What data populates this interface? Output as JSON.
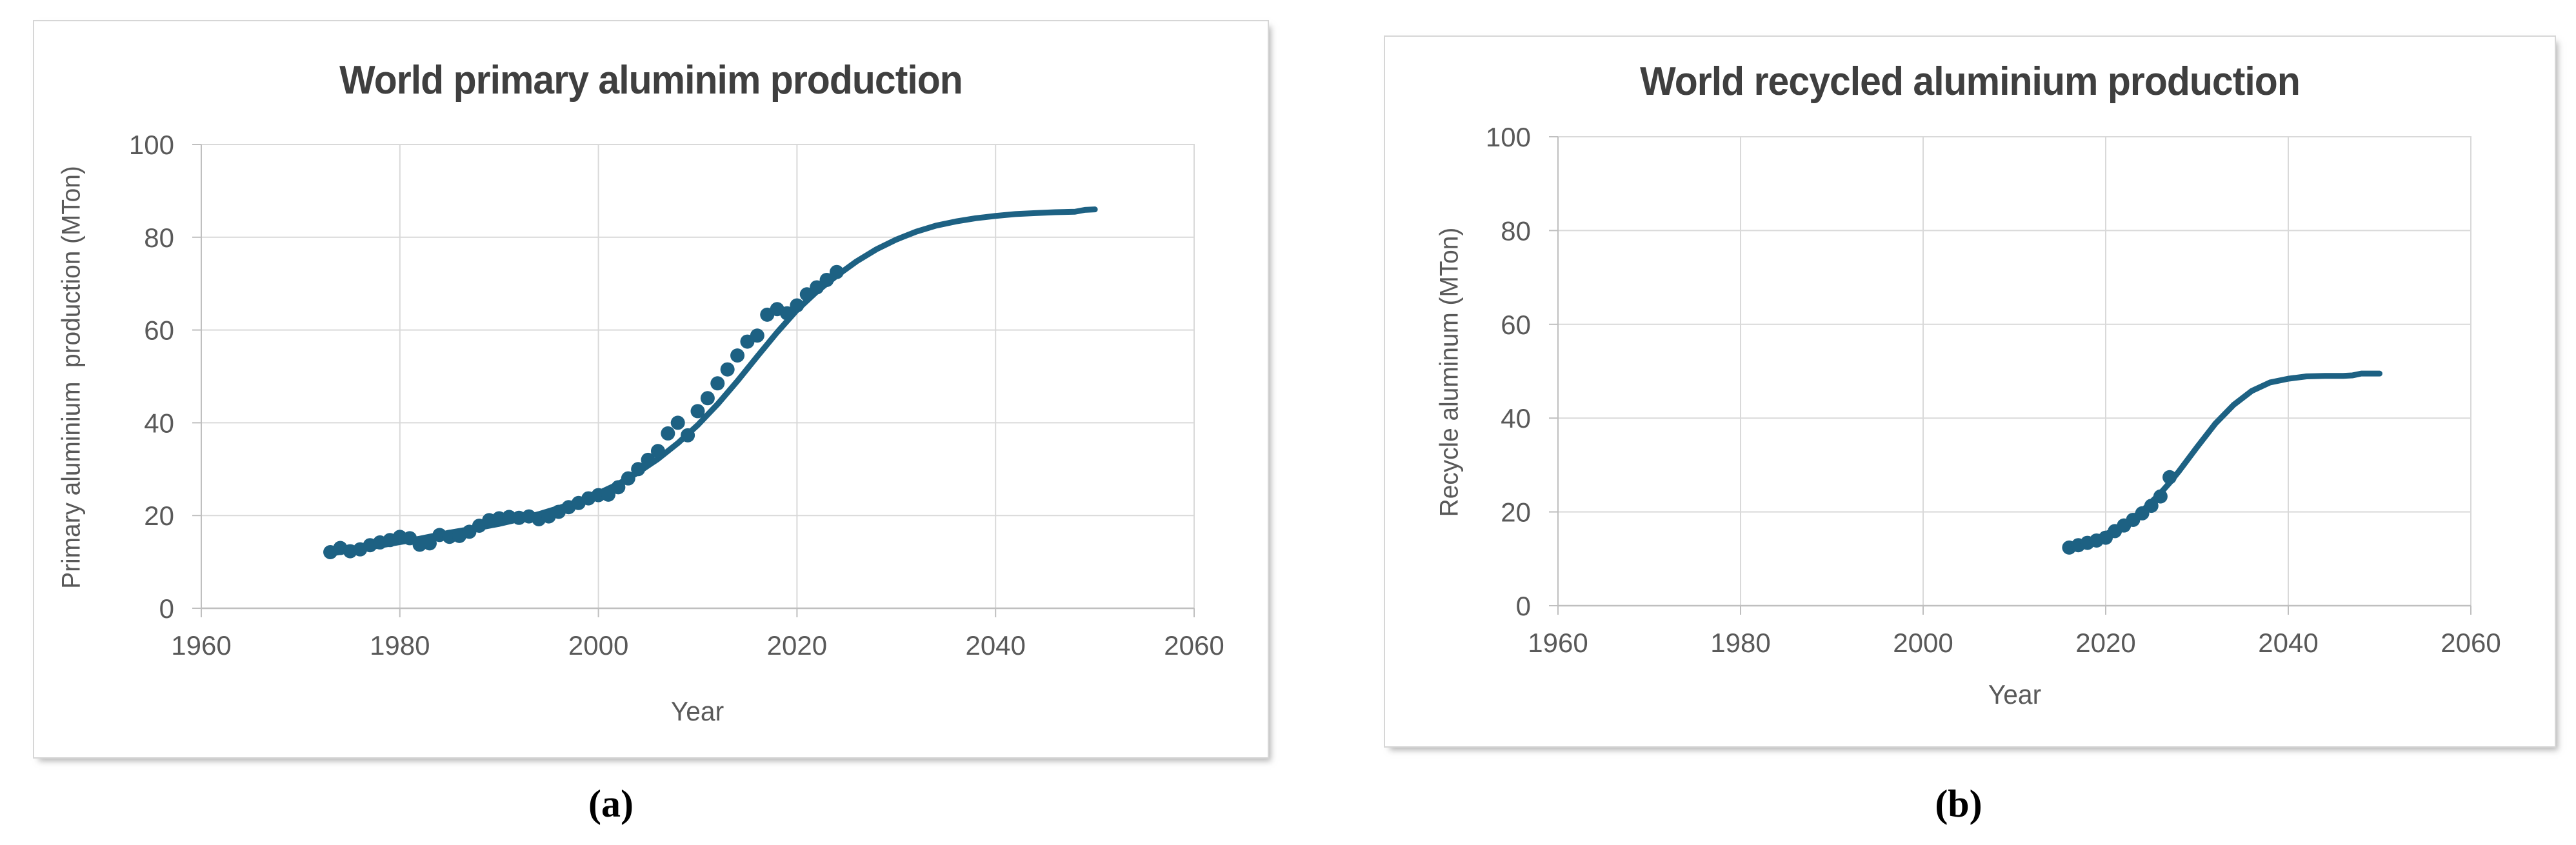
{
  "figure": {
    "captions": [
      "(a)",
      "(b)"
    ]
  },
  "colors": {
    "series": "#1D6183",
    "gridline": "#D9D9D9",
    "axis_line": "#BFBFBF",
    "tick_text": "#595959",
    "title_text": "#3F3F3F",
    "panel_border": "#D6D6D6"
  },
  "chart_data": [
    {
      "id": "primary",
      "type": "scatter",
      "title": "World primary aluminim production",
      "xlabel": "Year",
      "ylabel": "Primary aluminium  production (MTon)",
      "xlim": [
        1960,
        2060
      ],
      "ylim": [
        0,
        100
      ],
      "xticks": [
        1960,
        1980,
        2000,
        2020,
        2040,
        2060
      ],
      "yticks": [
        0,
        20,
        40,
        60,
        80,
        100
      ],
      "grid": true,
      "legend": "none",
      "series_name": "Primary aluminium production (MTon)",
      "scatter": [
        [
          1973,
          12.1
        ],
        [
          1974,
          13.0
        ],
        [
          1975,
          12.3
        ],
        [
          1976,
          12.7
        ],
        [
          1977,
          13.6
        ],
        [
          1978,
          14.2
        ],
        [
          1979,
          14.7
        ],
        [
          1980,
          15.4
        ],
        [
          1981,
          15.1
        ],
        [
          1982,
          13.7
        ],
        [
          1983,
          14.0
        ],
        [
          1984,
          15.8
        ],
        [
          1985,
          15.4
        ],
        [
          1986,
          15.6
        ],
        [
          1987,
          16.5
        ],
        [
          1988,
          17.8
        ],
        [
          1989,
          19.0
        ],
        [
          1990,
          19.4
        ],
        [
          1991,
          19.7
        ],
        [
          1992,
          19.5
        ],
        [
          1993,
          19.8
        ],
        [
          1994,
          19.2
        ],
        [
          1995,
          19.8
        ],
        [
          1996,
          20.8
        ],
        [
          1997,
          21.8
        ],
        [
          1998,
          22.7
        ],
        [
          1999,
          23.7
        ],
        [
          2000,
          24.4
        ],
        [
          2001,
          24.5
        ],
        [
          2002,
          26.1
        ],
        [
          2003,
          28.0
        ],
        [
          2004,
          30.0
        ],
        [
          2005,
          32.0
        ],
        [
          2006,
          33.9
        ],
        [
          2007,
          37.7
        ],
        [
          2008,
          40.0
        ],
        [
          2009,
          37.3
        ],
        [
          2010,
          42.5
        ],
        [
          2011,
          45.3
        ],
        [
          2012,
          48.5
        ],
        [
          2013,
          51.5
        ],
        [
          2014,
          54.5
        ],
        [
          2015,
          57.5
        ],
        [
          2016,
          58.8
        ],
        [
          2017,
          63.3
        ],
        [
          2018,
          64.5
        ],
        [
          2019,
          63.6
        ],
        [
          2020,
          65.3
        ],
        [
          2021,
          67.7
        ],
        [
          2022,
          69.2
        ],
        [
          2023,
          70.8
        ],
        [
          2024,
          72.5
        ]
      ],
      "fit_line": [
        [
          1973,
          11.8
        ],
        [
          1976,
          12.8
        ],
        [
          1979,
          13.9
        ],
        [
          1982,
          15.0
        ],
        [
          1985,
          16.3
        ],
        [
          1988,
          17.4
        ],
        [
          1990,
          18.2
        ],
        [
          1992,
          19.2
        ],
        [
          1994,
          20.3
        ],
        [
          1996,
          21.6
        ],
        [
          1998,
          23.1
        ],
        [
          2000,
          24.8
        ],
        [
          2002,
          26.8
        ],
        [
          2004,
          29.3
        ],
        [
          2006,
          32.2
        ],
        [
          2008,
          35.6
        ],
        [
          2010,
          39.5
        ],
        [
          2012,
          44.0
        ],
        [
          2014,
          49.0
        ],
        [
          2016,
          54.3
        ],
        [
          2018,
          59.5
        ],
        [
          2020,
          64.3
        ],
        [
          2022,
          68.3
        ],
        [
          2024,
          71.7
        ],
        [
          2026,
          74.8
        ],
        [
          2028,
          77.4
        ],
        [
          2030,
          79.5
        ],
        [
          2032,
          81.2
        ],
        [
          2034,
          82.5
        ],
        [
          2036,
          83.4
        ],
        [
          2038,
          84.1
        ],
        [
          2040,
          84.6
        ],
        [
          2042,
          85.0
        ],
        [
          2044,
          85.2
        ],
        [
          2046,
          85.4
        ],
        [
          2048,
          85.5
        ],
        [
          2049,
          85.9
        ],
        [
          2050,
          86.0
        ]
      ]
    },
    {
      "id": "recycled",
      "type": "scatter",
      "title": "World recycled aluminium production",
      "xlabel": "Year",
      "ylabel": "Recycle aluminum (MTon)",
      "xlim": [
        1960,
        2060
      ],
      "ylim": [
        0,
        100
      ],
      "xticks": [
        1960,
        1980,
        2000,
        2020,
        2040,
        2060
      ],
      "yticks": [
        0,
        20,
        40,
        60,
        80,
        100
      ],
      "grid": true,
      "legend": "none",
      "series_name": "Recycle aluminum (MTon)",
      "scatter": [
        [
          2016,
          12.4
        ],
        [
          2017,
          12.9
        ],
        [
          2018,
          13.4
        ],
        [
          2019,
          13.9
        ],
        [
          2020,
          14.5
        ],
        [
          2021,
          15.9
        ],
        [
          2022,
          17.1
        ],
        [
          2023,
          18.3
        ],
        [
          2024,
          19.7
        ],
        [
          2025,
          21.3
        ],
        [
          2026,
          23.3
        ],
        [
          2027,
          27.4
        ]
      ],
      "fit_line": [
        [
          2016,
          12.4
        ],
        [
          2018,
          13.6
        ],
        [
          2020,
          15.2
        ],
        [
          2022,
          17.4
        ],
        [
          2024,
          20.2
        ],
        [
          2026,
          24.0
        ],
        [
          2027,
          26.2
        ],
        [
          2028,
          28.6
        ],
        [
          2030,
          33.8
        ],
        [
          2032,
          38.8
        ],
        [
          2034,
          42.8
        ],
        [
          2036,
          45.8
        ],
        [
          2038,
          47.6
        ],
        [
          2040,
          48.4
        ],
        [
          2042,
          48.9
        ],
        [
          2044,
          49.0
        ],
        [
          2046,
          49.0
        ],
        [
          2047,
          49.1
        ],
        [
          2048,
          49.5
        ],
        [
          2050,
          49.5
        ]
      ]
    }
  ]
}
